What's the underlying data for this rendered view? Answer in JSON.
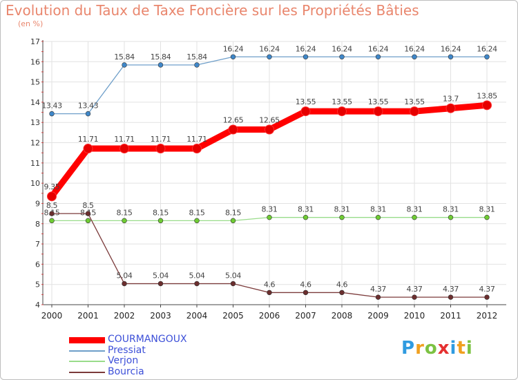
{
  "chart_data": {
    "type": "line",
    "title": "Evolution du Taux de Taxe Foncière sur les Propriétés Bâties",
    "subtitle": "(en %)",
    "xlabel": "",
    "ylabel": "",
    "ylim": [
      4,
      17
    ],
    "yticks": [
      "4",
      "5",
      "6",
      "7",
      "8",
      "9",
      "10",
      "11",
      "12",
      "13",
      "14",
      "15",
      "16",
      "17"
    ],
    "categories": [
      "2000",
      "2001",
      "2002",
      "2003",
      "2004",
      "2005",
      "2006",
      "2007",
      "2008",
      "2009",
      "2010",
      "2011",
      "2012"
    ],
    "grid": true,
    "legend_position": "bottom-left",
    "series": [
      {
        "name": "Pressiat",
        "color": "#6d9ec9",
        "marker_color": "#3f87c9",
        "values": [
          13.43,
          13.43,
          15.84,
          15.84,
          15.84,
          16.24,
          16.24,
          16.24,
          16.24,
          16.24,
          16.24,
          16.24,
          16.24
        ],
        "labels": [
          "13.43",
          "13.43",
          "15.84",
          "15.84",
          "15.84",
          "16.24",
          "16.24",
          "16.24",
          "16.24",
          "16.24",
          "16.24",
          "16.24",
          "16.24"
        ]
      },
      {
        "name": "Verjon",
        "color": "#99dc8a",
        "marker_color": "#6fcc33",
        "values": [
          8.15,
          8.15,
          8.15,
          8.15,
          8.15,
          8.15,
          8.31,
          8.31,
          8.31,
          8.31,
          8.31,
          8.31,
          8.31
        ],
        "labels": [
          "8.15",
          "8.15",
          "8.15",
          "8.15",
          "8.15",
          "8.15",
          "8.31",
          "8.31",
          "8.31",
          "8.31",
          "8.31",
          "8.31",
          "8.31"
        ]
      },
      {
        "name": "Bourcia",
        "color": "#7b3a3a",
        "marker_color": "#6b2e2e",
        "values": [
          8.5,
          8.5,
          5.04,
          5.04,
          5.04,
          5.04,
          4.6,
          4.6,
          4.6,
          4.37,
          4.37,
          4.37,
          4.37
        ],
        "labels": [
          "8.5",
          "8.5",
          "5.04",
          "5.04",
          "5.04",
          "5.04",
          "4.6",
          "4.6",
          "4.6",
          "4.37",
          "4.37",
          "4.37",
          "4.37"
        ]
      },
      {
        "name": "COURMANGOUX",
        "color": "#ff0000",
        "marker_color": "#e60000",
        "highlight": true,
        "values": [
          9.35,
          11.71,
          11.71,
          11.71,
          11.71,
          12.65,
          12.65,
          13.55,
          13.55,
          13.55,
          13.55,
          13.7,
          13.85
        ],
        "labels": [
          "9.35",
          "11.71",
          "11.71",
          "11.71",
          "11.71",
          "12.65",
          "12.65",
          "13.55",
          "13.55",
          "13.55",
          "13.55",
          "13.7",
          "13.85"
        ]
      }
    ]
  },
  "legend": [
    {
      "label": "COURMANGOUX",
      "color": "#ff0000"
    },
    {
      "label": "Pressiat",
      "color": "#6d9ec9"
    },
    {
      "label": "Verjon",
      "color": "#99dc8a"
    },
    {
      "label": "Bourcia",
      "color": "#7b3a3a"
    }
  ],
  "logo": {
    "letters": [
      "P",
      "r",
      "o",
      "x",
      "i",
      "t",
      "i"
    ],
    "colors": [
      "#2f9be0",
      "#f0a020",
      "#7cc242",
      "#e53030",
      "#2f9be0",
      "#f0a020",
      "#7cc242"
    ]
  }
}
